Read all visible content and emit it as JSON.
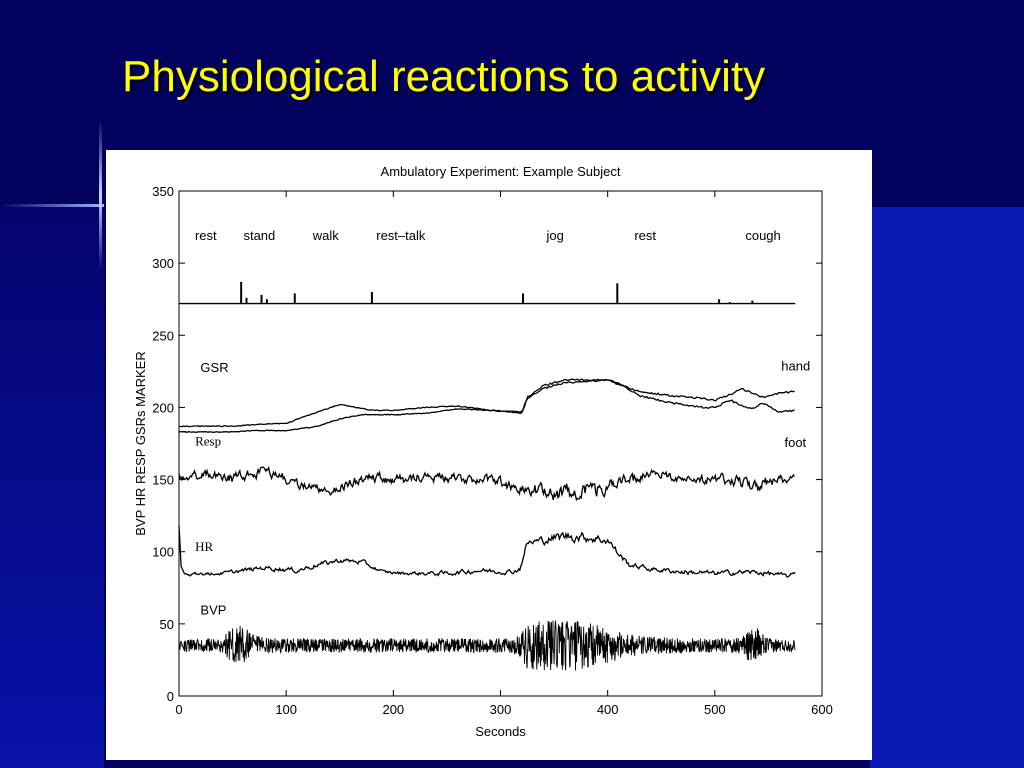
{
  "slide": {
    "title": "Physiological reactions to activity",
    "title_color": "#ffff00",
    "background_color": "#02025e",
    "accent_color": "#0a18b4"
  },
  "chart_data": {
    "type": "line",
    "title": "Ambulatory Experiment: Example Subject",
    "xlabel": "Seconds",
    "ylabel": "BVP HR RESP GSRs MARKER",
    "xlim": [
      0,
      600
    ],
    "ylim": [
      0,
      350
    ],
    "x_ticks": [
      0,
      100,
      200,
      300,
      400,
      500,
      600
    ],
    "y_ticks": [
      0,
      50,
      100,
      150,
      200,
      250,
      300,
      350
    ],
    "grid": false,
    "activity_labels": [
      {
        "text": "rest",
        "x": 25
      },
      {
        "text": "stand",
        "x": 75
      },
      {
        "text": "walk",
        "x": 137
      },
      {
        "text": "rest–talk",
        "x": 207
      },
      {
        "text": "jog",
        "x": 351
      },
      {
        "text": "rest",
        "x": 435
      },
      {
        "text": "cough",
        "x": 545
      }
    ],
    "trace_labels": [
      {
        "key": "gsr",
        "text": "GSR",
        "x": 20,
        "y": 228,
        "font": "sans"
      },
      {
        "key": "hand",
        "text": "hand",
        "x": 562,
        "y": 229,
        "font": "sans"
      },
      {
        "key": "foot",
        "text": "foot",
        "x": 565,
        "y": 176,
        "font": "sans"
      },
      {
        "key": "resp",
        "text": "Resp",
        "x": 15,
        "y": 177,
        "font": "serif"
      },
      {
        "key": "hr",
        "text": "HR",
        "x": 15,
        "y": 104,
        "font": "serif"
      },
      {
        "key": "bvp",
        "text": "BVP",
        "x": 20,
        "y": 60,
        "font": "sans"
      }
    ],
    "series": [
      {
        "key": "marker",
        "baseline": 272,
        "spikes": [
          [
            58,
            287
          ],
          [
            63,
            276
          ],
          [
            77,
            278
          ],
          [
            82,
            275
          ],
          [
            108,
            279
          ],
          [
            180,
            280
          ],
          [
            321,
            279
          ],
          [
            409,
            286
          ],
          [
            504,
            275
          ],
          [
            514,
            273
          ],
          [
            535,
            274
          ]
        ]
      },
      {
        "key": "gsr_hand",
        "x": [
          0,
          25,
          50,
          70,
          100,
          130,
          150,
          165,
          180,
          200,
          230,
          260,
          290,
          320,
          325,
          340,
          360,
          380,
          400,
          410,
          430,
          460,
          490,
          500,
          515,
          525,
          535,
          545,
          560,
          575
        ],
        "y": [
          187,
          187,
          187,
          188,
          189,
          197,
          202,
          200,
          198,
          198,
          200,
          201,
          198,
          197,
          207,
          215,
          219,
          219,
          219,
          216,
          211,
          208,
          206,
          205,
          209,
          213,
          210,
          207,
          210,
          211
        ]
      },
      {
        "key": "gsr_foot",
        "x": [
          0,
          25,
          50,
          70,
          100,
          130,
          150,
          170,
          180,
          200,
          230,
          260,
          290,
          320,
          325,
          340,
          360,
          380,
          400,
          410,
          430,
          460,
          490,
          500,
          515,
          525,
          535,
          545,
          560,
          575
        ],
        "y": [
          183,
          183,
          183,
          184,
          184,
          187,
          192,
          195,
          195,
          195,
          196,
          199,
          198,
          196,
          206,
          213,
          217,
          218,
          219,
          217,
          208,
          203,
          200,
          200,
          205,
          201,
          199,
          203,
          197,
          198
        ]
      },
      {
        "key": "resp",
        "x": [
          0,
          25,
          50,
          75,
          95,
          110,
          125,
          140,
          160,
          180,
          200,
          230,
          260,
          290,
          320,
          340,
          360,
          380,
          400,
          420,
          440,
          460,
          480,
          500,
          520,
          540,
          560,
          575
        ],
        "y": [
          152,
          154,
          151,
          155,
          153,
          147,
          144,
          142,
          148,
          151,
          150,
          152,
          151,
          149,
          145,
          142,
          141,
          142,
          145,
          150,
          153,
          152,
          151,
          150,
          149,
          146,
          150,
          151
        ],
        "amplitude": [
          5,
          6,
          7,
          6,
          6,
          5,
          5,
          5,
          6,
          6,
          7,
          6,
          6,
          6,
          7,
          9,
          10,
          10,
          8,
          7,
          7,
          6,
          6,
          6,
          7,
          8,
          6,
          6
        ]
      },
      {
        "key": "hr",
        "x": [
          0,
          2,
          5,
          40,
          80,
          110,
          130,
          150,
          170,
          190,
          210,
          250,
          280,
          310,
          318,
          325,
          340,
          360,
          380,
          400,
          412,
          420,
          440,
          470,
          500,
          530,
          550,
          570,
          575
        ],
        "y": [
          118,
          90,
          84,
          85,
          89,
          87,
          91,
          94,
          93,
          86,
          85,
          85,
          87,
          86,
          88,
          106,
          108,
          111,
          110,
          108,
          97,
          91,
          88,
          86,
          85,
          86,
          85,
          83,
          86
        ],
        "amplitude": [
          0,
          0,
          2,
          2,
          3,
          3,
          3,
          3,
          3,
          2,
          2,
          3,
          3,
          3,
          3,
          4,
          5,
          6,
          6,
          5,
          4,
          3,
          3,
          3,
          3,
          3,
          3,
          2,
          2
        ]
      },
      {
        "key": "bvp",
        "x": [
          0,
          40,
          50,
          60,
          70,
          90,
          150,
          250,
          310,
          318,
          325,
          340,
          360,
          380,
          400,
          420,
          440,
          480,
          520,
          530,
          540,
          550,
          575
        ],
        "y": [
          35,
          35,
          35,
          35,
          35,
          35,
          35,
          35,
          35,
          35,
          35,
          35,
          35,
          35,
          35,
          35,
          35,
          35,
          35,
          35,
          35,
          35,
          35
        ],
        "amplitude": [
          4,
          5,
          13,
          14,
          7,
          5,
          5,
          5,
          5,
          8,
          16,
          18,
          18,
          17,
          12,
          8,
          6,
          5,
          5,
          10,
          12,
          5,
          4
        ]
      }
    ]
  }
}
